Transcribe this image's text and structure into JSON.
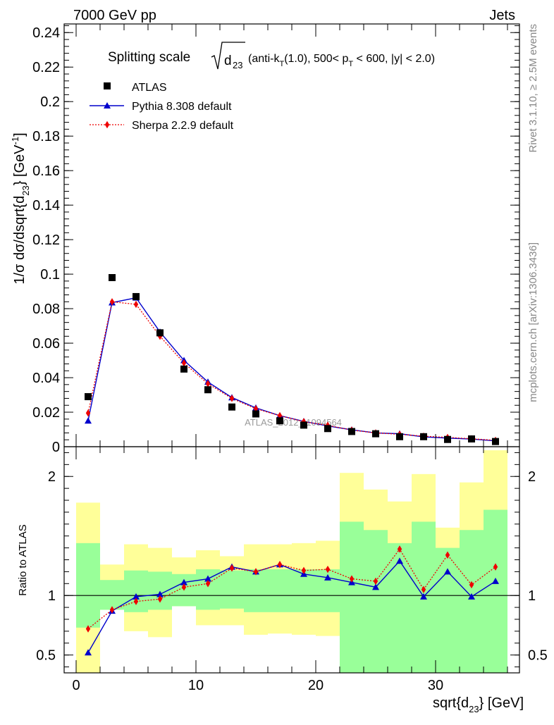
{
  "header": {
    "left": "7000 GeV pp",
    "right": "Jets"
  },
  "side_labels": {
    "rivet": "Rivet 3.1.10, ≥ 2.5M events",
    "mcplots": "mcplots.cern.ch [arXiv:1306.3436]"
  },
  "watermark": "ATLAS_2012_I1094564",
  "colors": {
    "data": "#000000",
    "pythia": "#0000cc",
    "sherpa": "#ee0000",
    "band_inner": "#99ff99",
    "band_outer": "#ffff99"
  },
  "chart_data": {
    "type": "line",
    "title": {
      "prefix": "Splitting scale",
      "sqrt_var": "d",
      "sqrt_sub": "23",
      "suffix_1": " (anti-k",
      "suffix_1_sub": "T",
      "suffix_2": "(1.0), 500< p",
      "suffix_2_sub": "T",
      "suffix_3": " < 600, |y| < 2.0)"
    },
    "xlabel": {
      "main": "sqrt{d",
      "sub": "23",
      "tail": "} [GeV]"
    },
    "ylabel": {
      "main": "1/σ dσ/dsqrt{d",
      "sub": "23",
      "mid": "} [GeV",
      "sup": "-1",
      "tail": "]"
    },
    "ratio_ylabel": "Ratio to ATLAS",
    "xlim": [
      -1,
      37
    ],
    "ylim": [
      0,
      0.245
    ],
    "ratio_ylim": [
      0.35,
      2.25
    ],
    "x_ticks": [
      0,
      10,
      20,
      30
    ],
    "y_ticks": [
      0,
      0.02,
      0.04,
      0.06,
      0.08,
      0.1,
      0.12,
      0.14,
      0.16,
      0.18,
      0.2,
      0.22,
      0.24
    ],
    "y_tick_labels": [
      "0",
      "0.02",
      "0.04",
      "0.06",
      "0.08",
      "0.1",
      "0.12",
      "0.14",
      "0.16",
      "0.18",
      "0.2",
      "0.22",
      "0.24"
    ],
    "ratio_ticks": [
      0.5,
      1,
      2
    ],
    "ratio_tick_labels": [
      "0.5",
      "1",
      "2"
    ],
    "legend_position": "top-left",
    "x": [
      1,
      3,
      5,
      7,
      9,
      11,
      13,
      15,
      17,
      19,
      21,
      23,
      25,
      27,
      29,
      31,
      33,
      35
    ],
    "bin_edges": [
      0,
      2,
      4,
      6,
      8,
      10,
      12,
      14,
      16,
      18,
      20,
      22,
      24,
      26,
      28,
      30,
      32,
      34,
      36
    ],
    "series": [
      {
        "name": "ATLAS",
        "marker": "square",
        "values": [
          0.029,
          0.098,
          0.087,
          0.066,
          0.045,
          0.033,
          0.023,
          0.019,
          0.015,
          0.0125,
          0.0105,
          0.0088,
          0.0075,
          0.0058,
          0.0058,
          0.0042,
          0.0045,
          0.003
        ]
      },
      {
        "name": "Pythia 8.308 default",
        "marker": "triangle",
        "values": [
          0.015,
          0.0835,
          0.0863,
          0.0665,
          0.05,
          0.0375,
          0.0285,
          0.0225,
          0.018,
          0.0147,
          0.012,
          0.0098,
          0.008,
          0.0075,
          0.0057,
          0.005,
          0.0044,
          0.0034
        ]
      },
      {
        "name": "Sherpa 2.2.9 default",
        "marker": "diamond",
        "values": [
          0.0195,
          0.084,
          0.0825,
          0.064,
          0.0485,
          0.0365,
          0.028,
          0.022,
          0.018,
          0.0145,
          0.0124,
          0.0096,
          0.008,
          0.0072,
          0.0061,
          0.0054,
          0.0046,
          0.0037
        ]
      }
    ],
    "ratio_series": [
      {
        "name": "Pythia 8.308 default",
        "values": [
          0.52,
          0.87,
          0.99,
          1.01,
          1.11,
          1.14,
          1.24,
          1.2,
          1.26,
          1.18,
          1.15,
          1.11,
          1.07,
          1.29,
          0.99,
          1.2,
          0.99,
          1.12
        ]
      },
      {
        "name": "Sherpa 2.2.9 default",
        "values": [
          0.72,
          0.88,
          0.95,
          0.97,
          1.07,
          1.1,
          1.23,
          1.2,
          1.26,
          1.21,
          1.22,
          1.14,
          1.12,
          1.39,
          1.05,
          1.34,
          1.09,
          1.24
        ]
      }
    ],
    "band_inner": [
      [
        0.73,
        1.44
      ],
      [
        0.88,
        1.13
      ],
      [
        0.86,
        1.21
      ],
      [
        0.88,
        1.2
      ],
      [
        0.91,
        1.18
      ],
      [
        0.88,
        1.22
      ],
      [
        0.89,
        1.21
      ],
      [
        0.86,
        1.22
      ],
      [
        0.86,
        1.22
      ],
      [
        0.86,
        1.22
      ],
      [
        0.86,
        1.22
      ],
      [
        0.35,
        1.62
      ],
      [
        0.35,
        1.55
      ],
      [
        0.35,
        1.44
      ],
      [
        0.35,
        1.62
      ],
      [
        0.35,
        1.4
      ],
      [
        0.35,
        1.55
      ],
      [
        0.35,
        1.72
      ]
    ],
    "band_outer": [
      [
        0.35,
        1.78
      ],
      [
        0.88,
        1.26
      ],
      [
        0.7,
        1.43
      ],
      [
        0.65,
        1.4
      ],
      [
        0.91,
        1.32
      ],
      [
        0.75,
        1.38
      ],
      [
        0.75,
        1.33
      ],
      [
        0.67,
        1.43
      ],
      [
        0.68,
        1.43
      ],
      [
        0.67,
        1.44
      ],
      [
        0.66,
        1.46
      ],
      [
        0.46,
        2.03
      ],
      [
        0.78,
        1.89
      ],
      [
        0.68,
        1.79
      ],
      [
        0.35,
        2.02
      ],
      [
        0.84,
        1.57
      ],
      [
        0.54,
        1.95
      ],
      [
        0.35,
        2.22
      ]
    ]
  }
}
